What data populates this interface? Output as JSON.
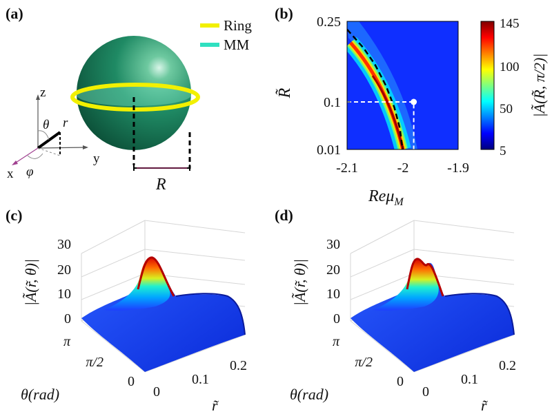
{
  "panels": {
    "a": {
      "label": "(a)",
      "legend": [
        {
          "name": "Ring",
          "color": "#f2f000"
        },
        {
          "name": "MM",
          "color": "#2fe0c0"
        }
      ],
      "axes": {
        "x": "x",
        "y": "y",
        "z": "z"
      },
      "angles": {
        "theta": "θ",
        "phi": "φ"
      },
      "r": "r",
      "R": "R"
    },
    "b": {
      "label": "(b)",
      "ylabel": "R̃",
      "xlabel": "Reμ",
      "xlabel_sub": "M",
      "colorbar_label": "|Ã(R̃, π/2)|",
      "colorbar_ticks": [
        "145",
        "100",
        "50",
        "5"
      ],
      "yticks": [
        "0.25",
        "0.1",
        "0.01"
      ],
      "xticks": [
        "-2.1",
        "-2",
        "-1.9"
      ]
    },
    "c": {
      "label": "(c)",
      "zlabel": "|Ã(r̃, θ)|",
      "zticks": [
        "30",
        "20",
        "10",
        "0"
      ],
      "theta_ticks": [
        "π",
        "π/2",
        "0"
      ],
      "theta_label": "θ(rad)",
      "r_ticks": [
        "0",
        "0.1",
        "0.2"
      ],
      "r_label": "r̃"
    },
    "d": {
      "label": "(d)",
      "zlabel": "|Ã(r̃, θ)|",
      "zticks": [
        "30",
        "20",
        "10",
        "0"
      ],
      "theta_ticks": [
        "π",
        "π/2",
        "0"
      ],
      "theta_label": "θ(rad)",
      "r_ticks": [
        "0",
        "0.1",
        "0.2"
      ],
      "r_label": "r̃"
    }
  },
  "chart_data": [
    {
      "type": "heatmap",
      "panel": "b",
      "x_axis": {
        "label": "Reμ_M",
        "range": [
          -2.1,
          -1.9
        ],
        "ticks": [
          -2.1,
          -2.0,
          -1.9
        ]
      },
      "y_axis": {
        "label": "R̃",
        "range": [
          0.01,
          0.25
        ],
        "ticks": [
          0.01,
          0.1,
          0.25
        ]
      },
      "colorbar": {
        "range": [
          5,
          145
        ],
        "ticks": [
          5,
          50,
          100,
          145
        ]
      },
      "resonance_curve": {
        "x": [
          -2.1,
          -2.07,
          -2.05,
          -2.03,
          -2.015,
          -2.005,
          -2.0
        ],
        "y": [
          0.235,
          0.2,
          0.17,
          0.13,
          0.09,
          0.05,
          0.01
        ]
      },
      "marker": {
        "x": -1.98,
        "y": 0.1
      }
    },
    {
      "type": "surface",
      "panel": "c",
      "z_axis": {
        "range": [
          0,
          30
        ],
        "ticks": [
          0,
          10,
          20,
          30
        ]
      },
      "theta_axis": {
        "range": [
          0,
          3.1416
        ]
      },
      "r_axis": {
        "range": [
          0,
          0.25
        ],
        "ticks": [
          0,
          0.1,
          0.2
        ]
      },
      "peak": 27
    },
    {
      "type": "surface",
      "panel": "d",
      "z_axis": {
        "range": [
          0,
          30
        ],
        "ticks": [
          0,
          10,
          20,
          30
        ]
      },
      "theta_axis": {
        "range": [
          0,
          3.1416
        ]
      },
      "r_axis": {
        "range": [
          0,
          0.25
        ],
        "ticks": [
          0,
          0.1,
          0.2
        ]
      },
      "peak": 26
    }
  ]
}
